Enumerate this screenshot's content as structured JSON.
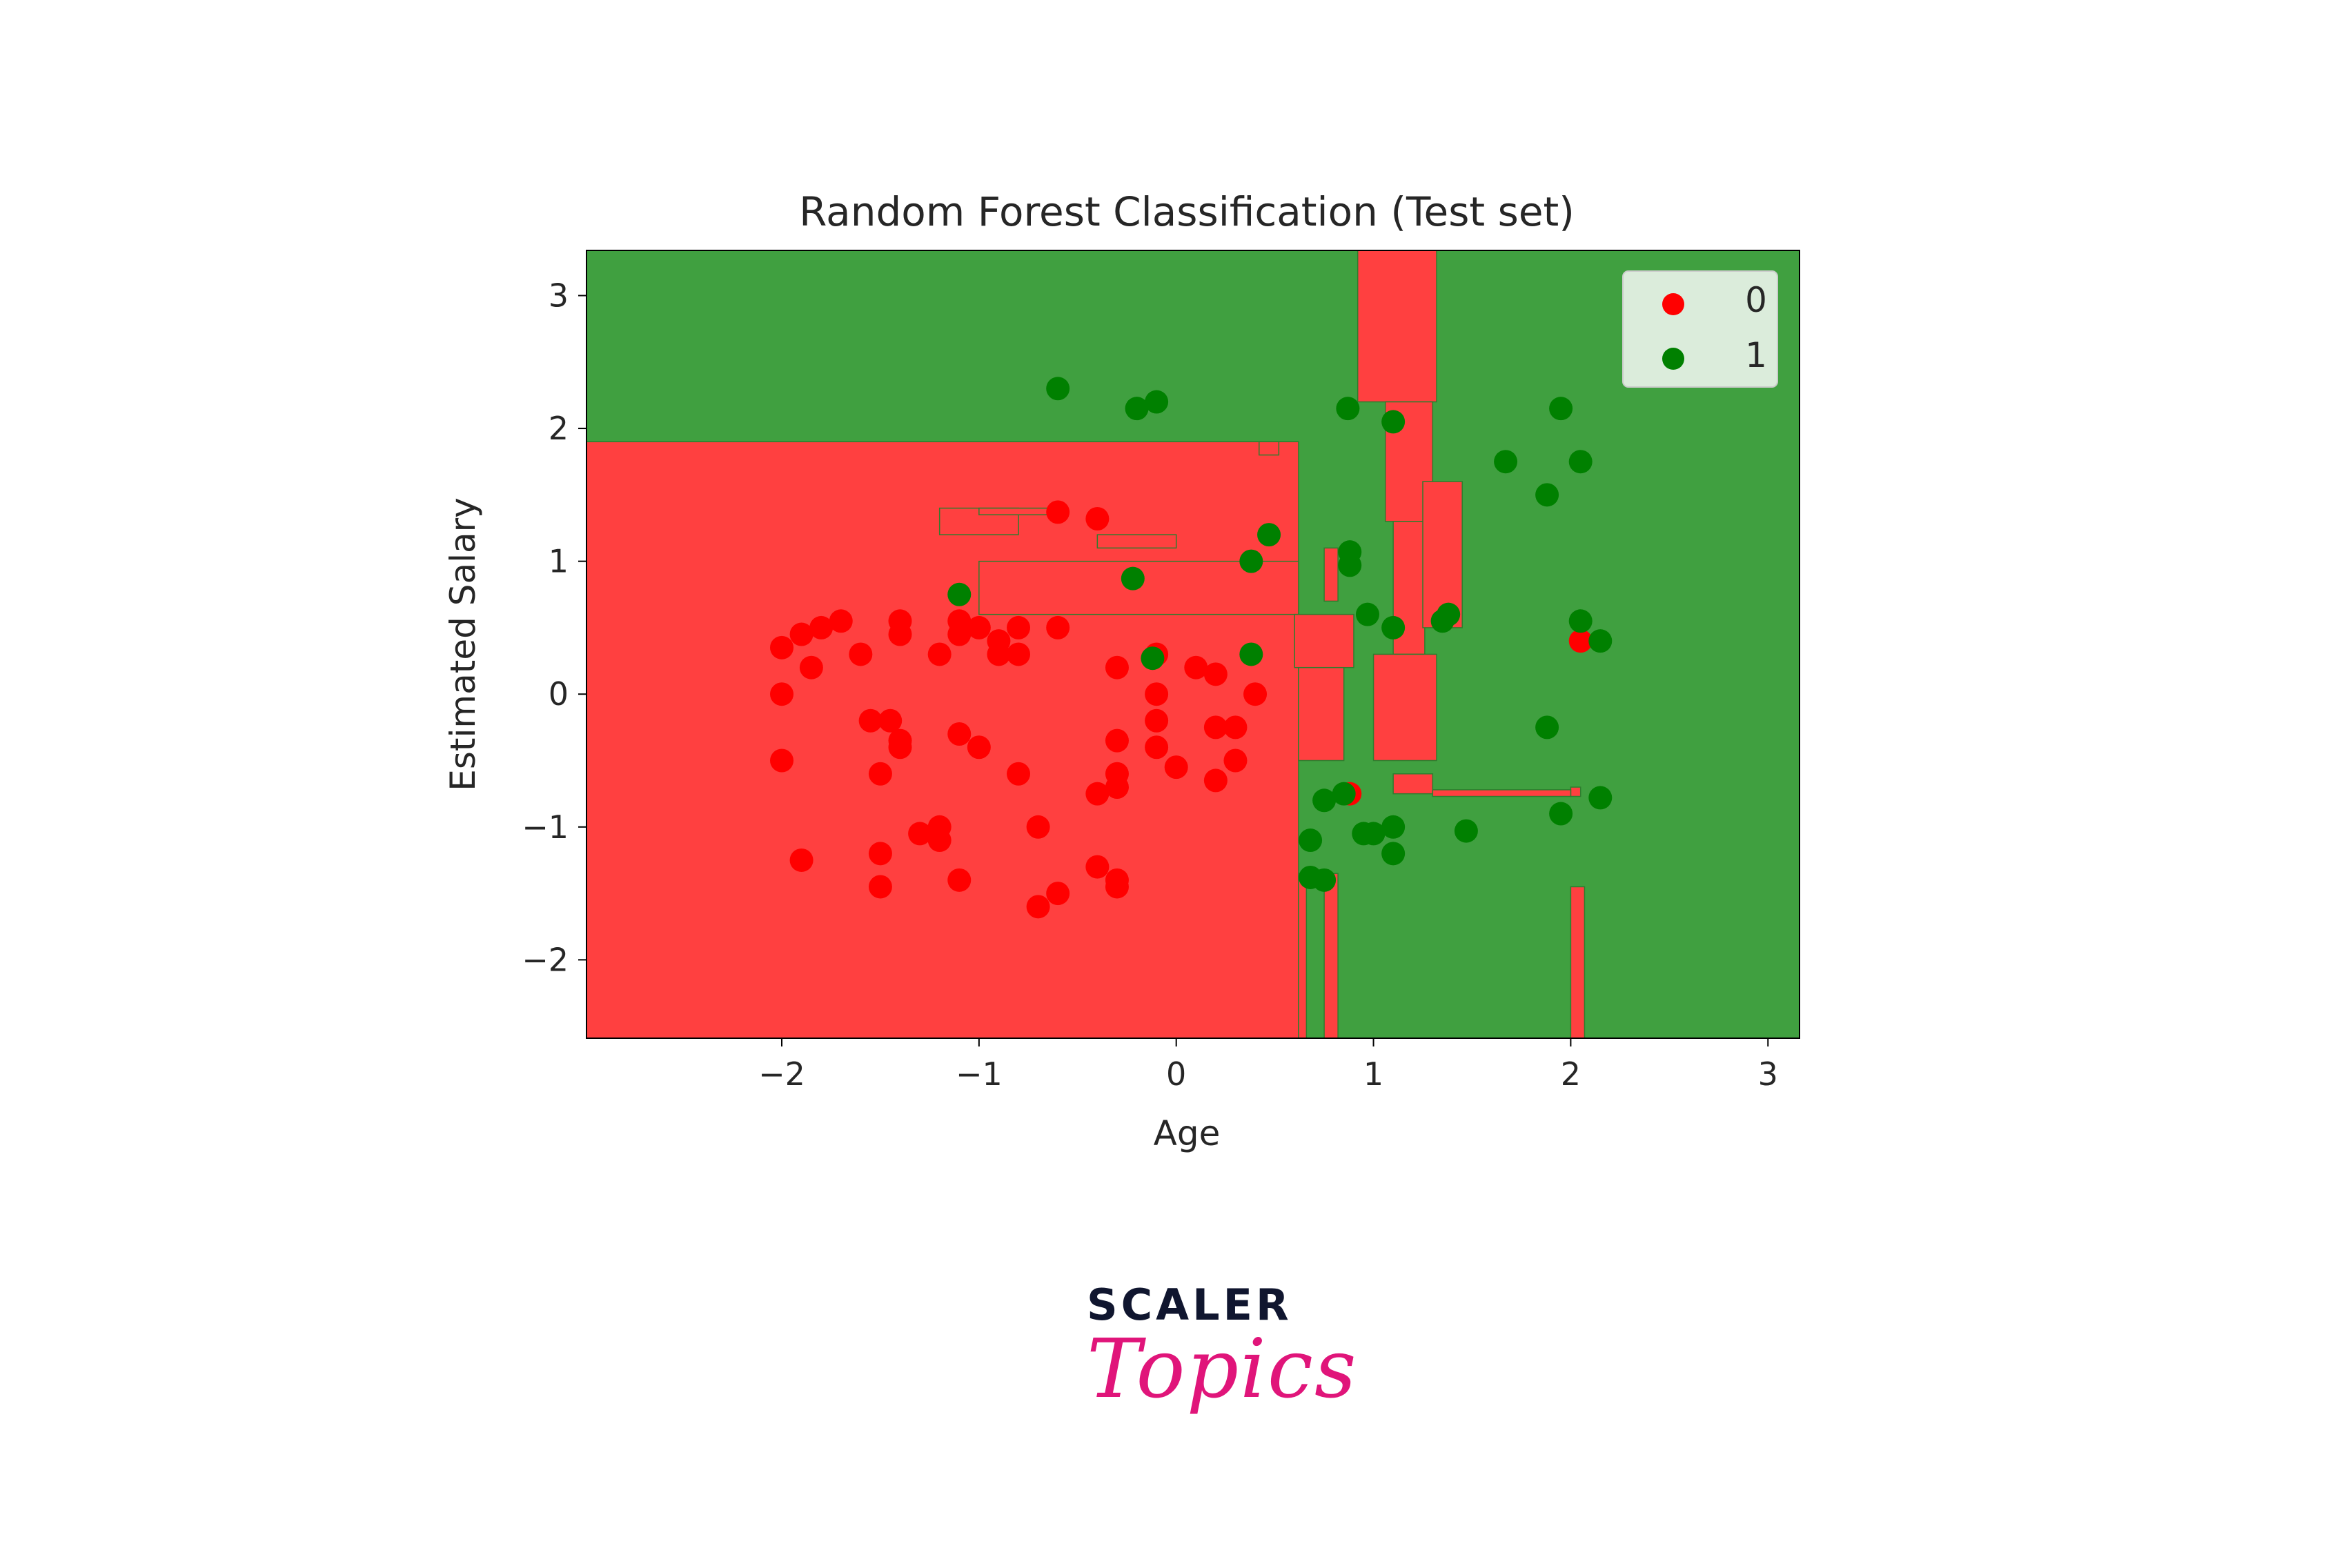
{
  "colors": {
    "region_class_0": "#ff4040",
    "region_class_1": "#40a040",
    "point_class_0": "#ff0000",
    "point_class_1": "#008000",
    "brand_dark": "#10162f",
    "brand_pink": "#e0157a"
  },
  "chart_data": {
    "type": "scatter",
    "title": "Random Forest Classification (Test set)",
    "xlabel": "Age",
    "ylabel": "Estimated Salary",
    "xlim": [
      -2.99,
      3.16
    ],
    "ylim": [
      -2.59,
      3.34
    ],
    "xticks": [
      -2,
      -1,
      0,
      1,
      2,
      3
    ],
    "xtick_labels": [
      "−2",
      "−1",
      "0",
      "1",
      "2",
      "3"
    ],
    "yticks": [
      -2,
      -1,
      0,
      1,
      2,
      3
    ],
    "ytick_labels": [
      "−2",
      "−1",
      "0",
      "1",
      "2",
      "3"
    ],
    "grid": false,
    "legend": {
      "position": "top-right",
      "entries": [
        "0",
        "1"
      ]
    },
    "decision_regions": {
      "background_class": "1",
      "class_0_rects": [
        [
          -2.99,
          -2.59,
          0.62,
          1.9
        ],
        [
          0.62,
          -2.59,
          0.66,
          -1.35
        ],
        [
          -1.0,
          0.6,
          0.62,
          1.0
        ],
        [
          0.6,
          0.2,
          0.9,
          0.6
        ],
        [
          0.62,
          -0.5,
          0.85,
          0.2
        ],
        [
          -1.2,
          1.2,
          -0.8,
          1.4
        ],
        [
          -1.0,
          1.35,
          -0.6,
          1.4
        ],
        [
          -0.4,
          1.1,
          0.0,
          1.2
        ],
        [
          0.42,
          1.8,
          0.52,
          1.9
        ],
        [
          0.75,
          0.7,
          0.82,
          1.1
        ],
        [
          0.92,
          2.2,
          1.32,
          3.34
        ],
        [
          1.06,
          1.3,
          1.3,
          2.2
        ],
        [
          1.1,
          0.3,
          1.26,
          1.3
        ],
        [
          1.0,
          -0.5,
          1.32,
          0.3
        ],
        [
          1.25,
          0.5,
          1.45,
          1.6
        ],
        [
          1.1,
          -0.75,
          1.3,
          -0.6
        ],
        [
          0.75,
          -2.59,
          0.82,
          -1.35
        ],
        [
          2.0,
          -2.59,
          2.07,
          -1.45
        ],
        [
          2.0,
          -0.77,
          2.05,
          -0.7
        ],
        [
          1.3,
          -0.77,
          2.0,
          -0.72
        ]
      ]
    },
    "series": [
      {
        "name": "0",
        "points": [
          [
            -2.0,
            0.35
          ],
          [
            -1.9,
            0.45
          ],
          [
            -1.8,
            0.5
          ],
          [
            -1.7,
            0.55
          ],
          [
            -1.85,
            0.2
          ],
          [
            -2.0,
            0.0
          ],
          [
            -1.6,
            0.3
          ],
          [
            -1.4,
            0.55
          ],
          [
            -1.4,
            0.45
          ],
          [
            -1.2,
            0.3
          ],
          [
            -1.1,
            0.55
          ],
          [
            -1.0,
            0.5
          ],
          [
            -1.1,
            0.45
          ],
          [
            -0.9,
            0.4
          ],
          [
            -0.8,
            0.5
          ],
          [
            -0.9,
            0.3
          ],
          [
            -0.8,
            0.3
          ],
          [
            -0.6,
            0.5
          ],
          [
            -2.0,
            -0.5
          ],
          [
            -1.9,
            -1.25
          ],
          [
            -1.5,
            -1.2
          ],
          [
            -1.55,
            -0.2
          ],
          [
            -1.45,
            -0.2
          ],
          [
            -1.4,
            -0.35
          ],
          [
            -1.4,
            -0.4
          ],
          [
            -1.5,
            -0.6
          ],
          [
            -1.1,
            -0.3
          ],
          [
            -1.0,
            -0.4
          ],
          [
            -1.3,
            -1.05
          ],
          [
            -1.2,
            -1.0
          ],
          [
            -1.2,
            -1.1
          ],
          [
            -1.1,
            -1.4
          ],
          [
            -1.5,
            -1.45
          ],
          [
            -0.8,
            -0.6
          ],
          [
            -0.7,
            -1.0
          ],
          [
            -0.7,
            -1.6
          ],
          [
            -0.6,
            -1.5
          ],
          [
            -0.4,
            -1.3
          ],
          [
            -0.3,
            -1.4
          ],
          [
            -0.3,
            -1.45
          ],
          [
            -0.4,
            -0.75
          ],
          [
            -0.3,
            -0.6
          ],
          [
            -0.3,
            -0.7
          ],
          [
            -0.3,
            -0.35
          ],
          [
            -0.3,
            0.2
          ],
          [
            -0.1,
            0.3
          ],
          [
            -0.1,
            0.0
          ],
          [
            -0.1,
            -0.2
          ],
          [
            -0.1,
            -0.4
          ],
          [
            0.0,
            -0.55
          ],
          [
            0.1,
            0.2
          ],
          [
            0.2,
            0.15
          ],
          [
            0.2,
            -0.25
          ],
          [
            0.3,
            -0.25
          ],
          [
            0.3,
            -0.5
          ],
          [
            0.2,
            -0.65
          ],
          [
            0.4,
            0.0
          ],
          [
            -0.6,
            1.37
          ],
          [
            -0.4,
            1.32
          ],
          [
            0.88,
            -0.75
          ],
          [
            2.05,
            0.4
          ]
        ]
      },
      {
        "name": "1",
        "points": [
          [
            -0.6,
            2.3
          ],
          [
            -0.2,
            2.15
          ],
          [
            -0.1,
            2.2
          ],
          [
            0.87,
            2.15
          ],
          [
            1.1,
            2.05
          ],
          [
            1.95,
            2.15
          ],
          [
            1.67,
            1.75
          ],
          [
            1.88,
            1.5
          ],
          [
            2.05,
            1.75
          ],
          [
            0.38,
            1.0
          ],
          [
            0.47,
            1.2
          ],
          [
            -0.22,
            0.87
          ],
          [
            0.88,
            1.07
          ],
          [
            0.88,
            0.97
          ],
          [
            0.97,
            0.6
          ],
          [
            1.1,
            0.5
          ],
          [
            1.38,
            0.6
          ],
          [
            1.35,
            0.55
          ],
          [
            2.05,
            0.55
          ],
          [
            2.15,
            0.4
          ],
          [
            -1.1,
            0.75
          ],
          [
            -0.12,
            0.27
          ],
          [
            0.38,
            0.3
          ],
          [
            1.88,
            -0.25
          ],
          [
            0.75,
            -0.8
          ],
          [
            0.85,
            -0.75
          ],
          [
            0.68,
            -1.1
          ],
          [
            1.0,
            -1.05
          ],
          [
            1.1,
            -1.0
          ],
          [
            1.1,
            -1.2
          ],
          [
            1.47,
            -1.03
          ],
          [
            1.95,
            -0.9
          ],
          [
            2.15,
            -0.78
          ],
          [
            0.68,
            -1.38
          ],
          [
            0.75,
            -1.4
          ],
          [
            0.95,
            -1.05
          ]
        ]
      }
    ]
  },
  "brand": {
    "line1": "SCALER",
    "line2": "Topics"
  }
}
